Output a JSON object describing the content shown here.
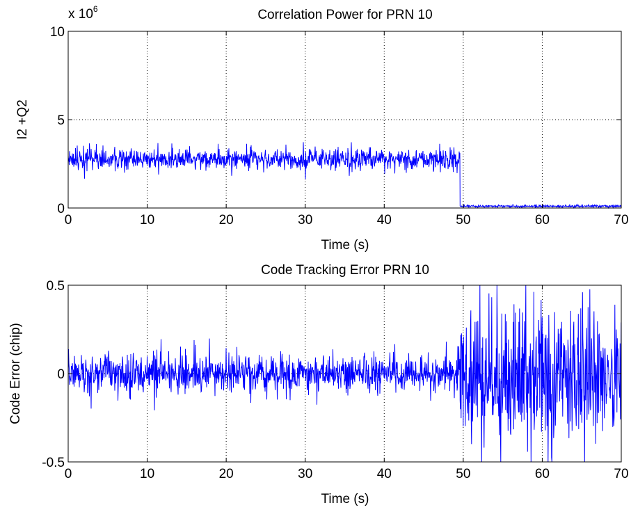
{
  "chart_data": [
    {
      "type": "line",
      "title": "Correlation Power for PRN 10",
      "xlabel": "Time (s)",
      "ylabel": "I2 +Q2",
      "exponent_label": {
        "base": "x 10",
        "power": "6"
      },
      "xlim": [
        0,
        70
      ],
      "ylim": [
        0,
        10
      ],
      "x_ticks": [
        0,
        10,
        20,
        30,
        40,
        50,
        60,
        70
      ],
      "x_tick_labels": [
        "0",
        "10",
        "20",
        "30",
        "40",
        "50",
        "60",
        "70"
      ],
      "y_ticks": [
        0,
        5,
        10
      ],
      "y_tick_labels": [
        "0",
        "5",
        "10"
      ],
      "grid": true,
      "series_color": "#0000ff",
      "segments": [
        {
          "x_start": 0,
          "x_end": 49.6,
          "mean": 2.75,
          "spread": 0.7,
          "max": 4.5,
          "min": 1.25
        },
        {
          "x_start": 49.6,
          "x_end": 70,
          "mean": 0.1,
          "spread": 0.08,
          "max": 0.3,
          "min": 0.0
        }
      ]
    },
    {
      "type": "line",
      "title": "Code Tracking Error PRN 10",
      "xlabel": "Time (s)",
      "ylabel": "Code Error (chip)",
      "xlim": [
        0,
        70
      ],
      "ylim": [
        -0.5,
        0.5
      ],
      "x_ticks": [
        0,
        10,
        20,
        30,
        40,
        50,
        60,
        70
      ],
      "x_tick_labels": [
        "0",
        "10",
        "20",
        "30",
        "40",
        "50",
        "60",
        "70"
      ],
      "y_ticks": [
        -0.5,
        0,
        0.5
      ],
      "y_tick_labels": [
        "-0.5",
        "0",
        "0.5"
      ],
      "grid": true,
      "series_color": "#0000ff",
      "segments": [
        {
          "x_start": 0,
          "x_end": 49.6,
          "mean": 0.0,
          "spread": 0.13,
          "max": 0.25,
          "min": -0.26
        },
        {
          "x_start": 49.6,
          "x_end": 70,
          "mean": 0.0,
          "spread": 0.47,
          "max": 0.5,
          "min": -0.5
        }
      ]
    }
  ]
}
